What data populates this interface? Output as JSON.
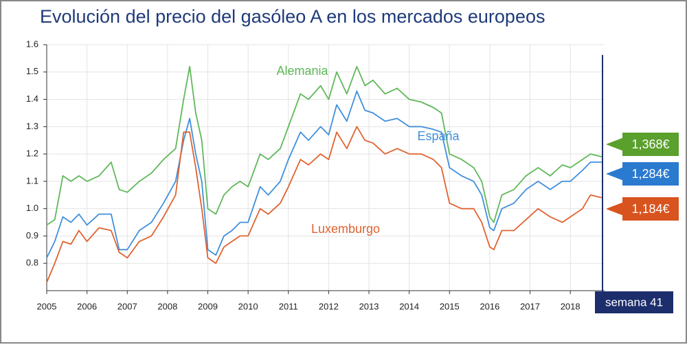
{
  "chart_data": {
    "type": "line",
    "title": "Evolución del precio del gasóleo A en los mercados europeos",
    "x": [
      2005,
      2005.2,
      2005.4,
      2005.6,
      2005.8,
      2006,
      2006.3,
      2006.6,
      2006.8,
      2007,
      2007.3,
      2007.6,
      2007.9,
      2008.2,
      2008.4,
      2008.55,
      2008.7,
      2008.85,
      2009,
      2009.2,
      2009.4,
      2009.6,
      2009.8,
      2010,
      2010.3,
      2010.5,
      2010.8,
      2011,
      2011.3,
      2011.5,
      2011.8,
      2012,
      2012.2,
      2012.45,
      2012.7,
      2012.9,
      2013.1,
      2013.4,
      2013.7,
      2014,
      2014.3,
      2014.6,
      2014.8,
      2015,
      2015.3,
      2015.6,
      2015.8,
      2016,
      2016.1,
      2016.3,
      2016.6,
      2016.9,
      2017.2,
      2017.5,
      2017.8,
      2018,
      2018.3,
      2018.5,
      2018.78
    ],
    "series": [
      {
        "name": "Alemania",
        "color": "#5fb85a",
        "values": [
          0.94,
          0.96,
          1.12,
          1.1,
          1.12,
          1.1,
          1.12,
          1.17,
          1.07,
          1.06,
          1.1,
          1.13,
          1.18,
          1.22,
          1.4,
          1.52,
          1.35,
          1.25,
          1.0,
          0.98,
          1.05,
          1.08,
          1.1,
          1.08,
          1.2,
          1.18,
          1.22,
          1.3,
          1.42,
          1.4,
          1.45,
          1.4,
          1.5,
          1.42,
          1.52,
          1.45,
          1.47,
          1.42,
          1.44,
          1.4,
          1.39,
          1.37,
          1.35,
          1.2,
          1.18,
          1.15,
          1.1,
          0.97,
          0.95,
          1.05,
          1.07,
          1.12,
          1.15,
          1.12,
          1.16,
          1.15,
          1.18,
          1.2,
          1.19
        ]
      },
      {
        "name": "España",
        "color": "#3f8fdc",
        "values": [
          0.82,
          0.88,
          0.97,
          0.95,
          0.98,
          0.94,
          0.98,
          0.98,
          0.85,
          0.85,
          0.92,
          0.95,
          1.02,
          1.1,
          1.25,
          1.33,
          1.2,
          1.1,
          0.85,
          0.83,
          0.9,
          0.92,
          0.95,
          0.95,
          1.08,
          1.05,
          1.1,
          1.18,
          1.28,
          1.25,
          1.3,
          1.27,
          1.38,
          1.32,
          1.43,
          1.36,
          1.35,
          1.32,
          1.33,
          1.3,
          1.3,
          1.29,
          1.28,
          1.15,
          1.12,
          1.1,
          1.05,
          0.93,
          0.92,
          1.0,
          1.02,
          1.07,
          1.1,
          1.07,
          1.1,
          1.1,
          1.14,
          1.17,
          1.17
        ]
      },
      {
        "name": "Luxemburgo",
        "color": "#e0622f",
        "values": [
          0.73,
          0.8,
          0.88,
          0.87,
          0.92,
          0.88,
          0.93,
          0.92,
          0.84,
          0.82,
          0.88,
          0.9,
          0.97,
          1.05,
          1.28,
          1.28,
          1.15,
          1.0,
          0.82,
          0.8,
          0.86,
          0.88,
          0.9,
          0.9,
          1.0,
          0.98,
          1.02,
          1.08,
          1.18,
          1.16,
          1.2,
          1.18,
          1.28,
          1.22,
          1.3,
          1.25,
          1.24,
          1.2,
          1.22,
          1.2,
          1.2,
          1.18,
          1.15,
          1.02,
          1.0,
          1.0,
          0.95,
          0.86,
          0.85,
          0.92,
          0.92,
          0.96,
          1.0,
          0.97,
          0.95,
          0.97,
          1.0,
          1.05,
          1.04
        ]
      }
    ],
    "xlim": [
      2005,
      2018.85
    ],
    "xticks": [
      2005,
      2006,
      2007,
      2008,
      2009,
      2010,
      2011,
      2012,
      2013,
      2014,
      2015,
      2016,
      2017,
      2018
    ],
    "ylim": [
      0.7,
      1.6
    ],
    "yticks": [
      0.8,
      0.9,
      {
        "value": 1.0,
        "label": "1.0"
      },
      1.1,
      1.2,
      1.3,
      1.4,
      1.5,
      1.6
    ],
    "grid": true,
    "callouts": [
      {
        "text": "1,368€",
        "color": "#5aa02c"
      },
      {
        "text": "1,284€",
        "color": "#2a7ad0"
      },
      {
        "text": "1,184€",
        "color": "#d9531e"
      }
    ],
    "marker_label": "semana 41"
  }
}
